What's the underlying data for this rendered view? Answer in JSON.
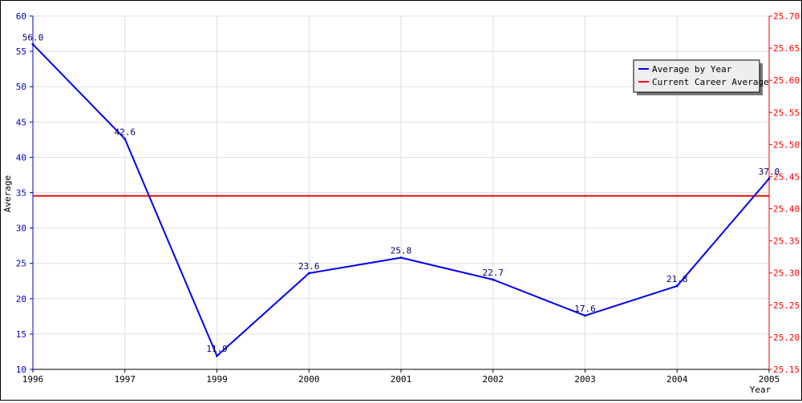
{
  "chart_data": {
    "type": "line",
    "title": "",
    "xlabel": "Year",
    "ylabel": "Average",
    "grid": true,
    "legend_position": "top-right",
    "categories": [
      "1996",
      "1997",
      "1999",
      "2000",
      "2001",
      "2002",
      "2003",
      "2004",
      "2005"
    ],
    "ylim": [
      10,
      60
    ],
    "y2lim": [
      25.15,
      25.7
    ],
    "y_ticks": [
      "10",
      "15",
      "20",
      "25",
      "30",
      "35",
      "40",
      "45",
      "50",
      "55",
      "60"
    ],
    "y2_ticks": [
      "25.15",
      "25.20",
      "25.25",
      "25.30",
      "25.35",
      "25.40",
      "25.45",
      "25.50",
      "25.55",
      "25.60",
      "25.65",
      "25.70"
    ],
    "series": [
      {
        "name": "Average by Year",
        "color": "#0000ee",
        "values": [
          56.0,
          42.6,
          11.9,
          23.6,
          25.8,
          22.7,
          17.6,
          21.8,
          37.0
        ],
        "labels": [
          "56.0",
          "42.6",
          "11.9",
          "23.6",
          "25.8",
          "22.7",
          "17.6",
          "21.8",
          "37.0"
        ]
      },
      {
        "name": "Current Career Average",
        "color": "#ee0000",
        "axis": "right",
        "value": 25.42
      }
    ]
  }
}
